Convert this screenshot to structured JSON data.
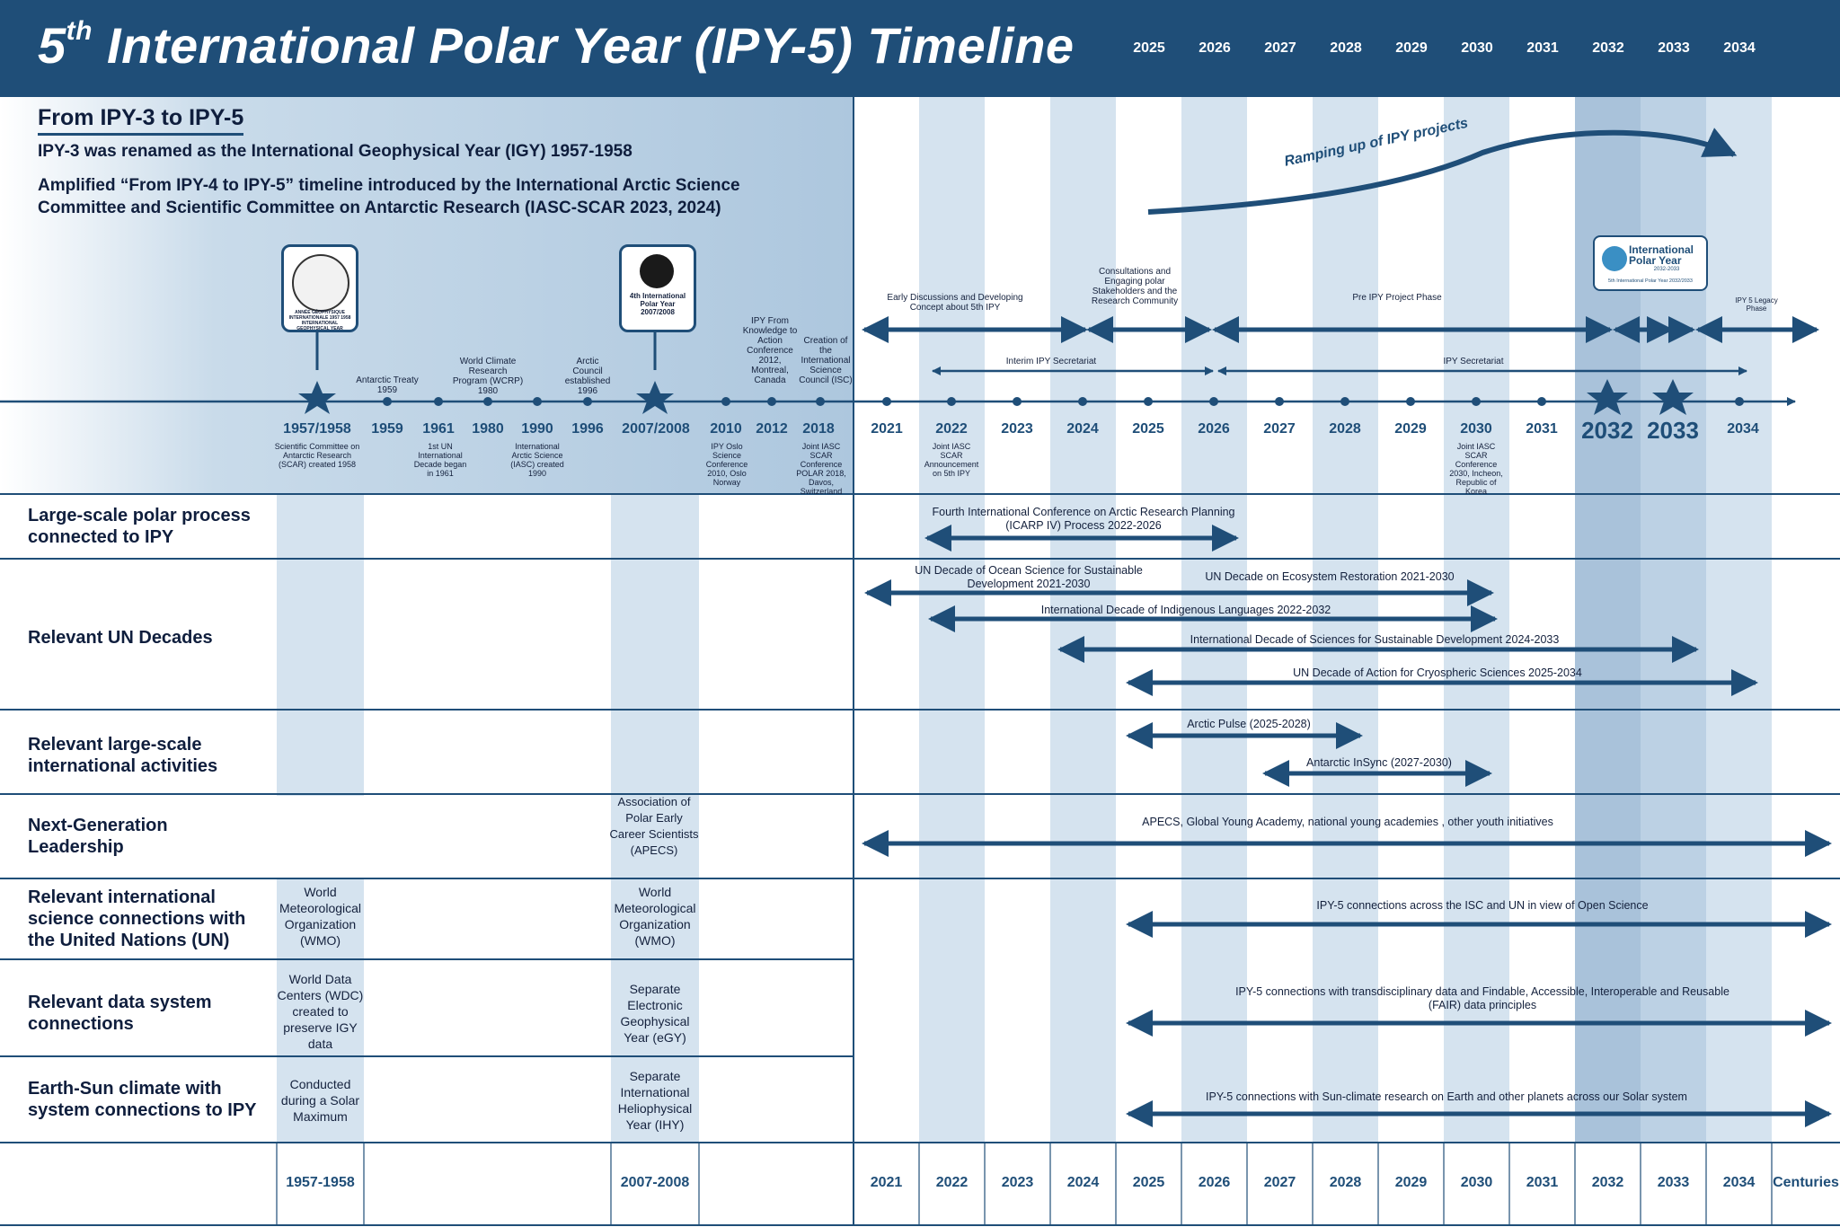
{
  "header": {
    "title_main": "International Polar Year (IPY-5) Timeline",
    "title_num": "5",
    "title_sup": "th",
    "years": [
      "2025",
      "2026",
      "2027",
      "2028",
      "2029",
      "2030",
      "2031",
      "2032",
      "2033",
      "2034"
    ]
  },
  "intro": {
    "heading": "From IPY-3 to IPY-5",
    "line1": "IPY-3 was renamed as the International Geophysical Year (IGY) 1957-1958",
    "line2": "Amplified “From IPY-4 to IPY-5” timeline introduced by the International Arctic Science Committee and Scientific Committee on Antarctic Research (IASC-SCAR 2023, 2024)"
  },
  "logos": {
    "igy": "ANNÉE GÉOPHYSIQUE INTERNATIONALE 1957 1958 INTERNATIONAL GEOPHYSICAL YEAR",
    "ipy4": "4th International Polar Year 2007/2008",
    "ipy5_title": "International Polar Year",
    "ipy5_years": "2032-2033",
    "ipy5_sub": "5th International Polar Year 2032/2033"
  },
  "ramping": "Ramping up of IPY projects",
  "timeline_years": {
    "y1957": "1957/1958",
    "y1959": "1959",
    "y1961": "1961",
    "y1980": "1980",
    "y1990": "1990",
    "y1996": "1996",
    "y2007": "2007/2008",
    "y2010": "2010",
    "y2012": "2012",
    "y2018": "2018",
    "y2021": "2021",
    "y2022": "2022",
    "y2023": "2023",
    "y2024": "2024",
    "y2025": "2025",
    "y2026": "2026",
    "y2027": "2027",
    "y2028": "2028",
    "y2029": "2029",
    "y2030": "2030",
    "y2031": "2031",
    "y2032": "2032",
    "y2033": "2033",
    "y2034": "2034"
  },
  "events_above": {
    "antarctic_treaty": "Antarctic Treaty 1959",
    "wcrp": "World Climate Research Program (WCRP) 1980",
    "arctic_council": "Arctic Council established 1996",
    "ipy_knowledge": "IPY From Knowledge to Action Conference 2012, Montreal, Canada",
    "isc": "Creation of the International Science Council (ISC)",
    "early_discussions": "Early Discussions and Developing Concept about 5th IPY",
    "consultations": "Consultations and Engaging polar Stakeholders and the Research Community",
    "pre_ipy": "Pre IPY Project Phase",
    "legacy": "IPY 5 Legacy Phase",
    "interim": "Interim IPY Secretariat",
    "secretariat": "IPY Secretariat"
  },
  "events_below": {
    "scar": "Scientific Committee on Antarctic Research (SCAR) created 1958",
    "un_decade": "1st UN International Decade began in 1961",
    "iasc": "International Arctic Science (IASC) created 1990",
    "oslo": "IPY Oslo Science Conference 2010, Oslo Norway",
    "polar2018": "Joint IASC SCAR Conference POLAR 2018, Davos, Switzerland",
    "joint2022": "Joint IASC SCAR Announcement on 5th IPY",
    "joint2030": "Joint IASC SCAR Conference 2030, Incheon, Republic of Korea"
  },
  "rows": {
    "large_scale": {
      "label": "Large-scale polar process connected to IPY",
      "icarp": "Fourth International Conference on Arctic Research Planning (ICARP IV) Process 2022-2026"
    },
    "un_decades": {
      "label": "Relevant UN Decades",
      "ocean": "UN Decade of Ocean Science for Sustainable Development 2021-2030",
      "ecosystem": "UN Decade on Ecosystem Restoration 2021-2030",
      "indigenous": "International Decade of Indigenous Languages 2022-2032",
      "sciences": "International Decade of Sciences for Sustainable Development 2024-2033",
      "cryo": "UN Decade of Action for Cryospheric Sciences 2025-2034"
    },
    "intl_activities": {
      "label": "Relevant large-scale international activities",
      "arctic_pulse": "Arctic Pulse (2025-2028)",
      "insync": "Antarctic InSync (2027-2030)"
    },
    "next_gen": {
      "label": "Next-Generation Leadership",
      "apecs_2007": "Association of Polar Early Career Scientists (APECS)",
      "apecs_arrow": "APECS, Global Young Academy, national young academies , other youth initiatives"
    },
    "un_science": {
      "label": "Relevant international science connections with the United Nations (UN)",
      "wmo_1957": "World Meteorological Organization (WMO)",
      "wmo_2007": "World Meteorological Organization (WMO)",
      "arrow": "IPY-5 connections across the ISC and UN in view of Open Science"
    },
    "data_systems": {
      "label": "Relevant data system connections",
      "wdc_1957": "World Data Centers (WDC) created to preserve IGY data",
      "egy_2007": "Separate Electronic Geophysical Year (eGY)",
      "arrow": "IPY-5 connections with transdisciplinary data and Findable, Accessible, Interoperable and Reusable (FAIR) data principles"
    },
    "earth_sun": {
      "label": "Earth-Sun climate with system connections to IPY",
      "solar_1957": "Conducted during a Solar Maximum",
      "ihy_2007": "Separate International Heliophysical Year (IHY)",
      "arrow": "IPY-5 connections with Sun-climate research on Earth and other planets across our Solar system"
    }
  },
  "footer": {
    "f1957": "1957-1958",
    "f2007": "2007-2008",
    "years": [
      "2021",
      "2022",
      "2023",
      "2024",
      "2025",
      "2026",
      "2027",
      "2028",
      "2029",
      "2030",
      "2031",
      "2032",
      "2033",
      "2034"
    ],
    "centuries": "Centuries"
  },
  "colors": {
    "navy": "#1f4e78",
    "band": "#d5e3ef",
    "band_dark": "#a9c2da",
    "text": "#0f1e3d"
  }
}
